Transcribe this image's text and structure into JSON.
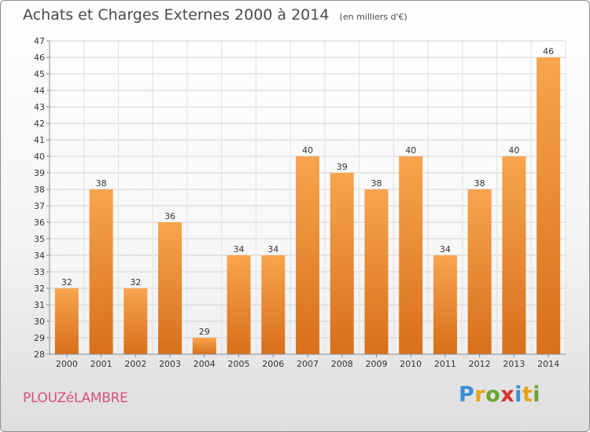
{
  "header": {
    "title": "Achats et Charges Externes 2000 à 2014",
    "subtitle": "(en milliers d'€)"
  },
  "footer": {
    "city": "PLOUZéLAMBRE",
    "brand": [
      "P",
      "r",
      "o",
      "x",
      "i",
      "t",
      "i"
    ],
    "brand_colors": [
      "#3b8fd6",
      "#e8a21a",
      "#6aa52e",
      "#d8312d",
      "#3b8fd6",
      "#e8a21a",
      "#6aa52e"
    ]
  },
  "chart_data": {
    "type": "bar",
    "title": "Achats et Charges Externes 2000 à 2014",
    "subtitle": "(en milliers d'€)",
    "categories": [
      "2000",
      "2001",
      "2002",
      "2003",
      "2004",
      "2005",
      "2006",
      "2007",
      "2008",
      "2009",
      "2010",
      "2011",
      "2012",
      "2013",
      "2014"
    ],
    "values": [
      32,
      38,
      32,
      36,
      29,
      34,
      34,
      40,
      39,
      38,
      40,
      34,
      38,
      40,
      46
    ],
    "ylim": [
      28,
      47
    ],
    "yticks": [
      28,
      29,
      30,
      31,
      32,
      33,
      34,
      35,
      36,
      37,
      38,
      39,
      40,
      41,
      42,
      43,
      44,
      45,
      46,
      47
    ],
    "grid": true,
    "bar_color_top": "#f7a54e",
    "bar_color_bottom": "#d86f1b"
  }
}
